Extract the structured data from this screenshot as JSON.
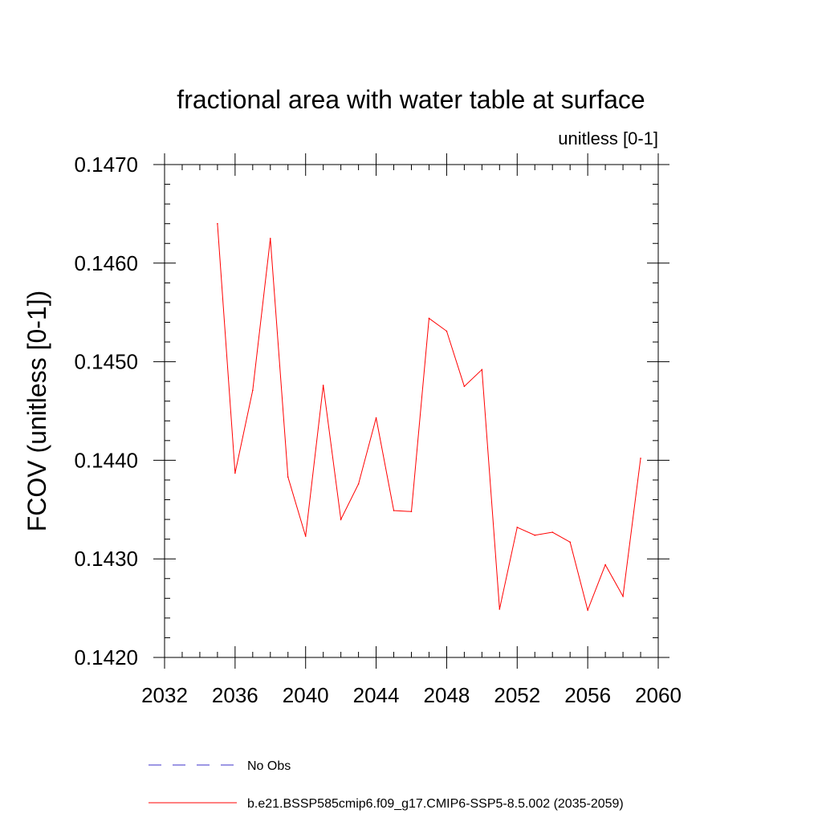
{
  "chart_data": {
    "type": "line",
    "title": "fractional area with water table at surface",
    "subtitle": "unitless [0-1]",
    "xlabel": "",
    "ylabel": "FCOV  (unitless [0-1])",
    "xlim": [
      2032,
      2060
    ],
    "ylim": [
      0.142,
      0.147
    ],
    "x_ticks": [
      2032,
      2036,
      2040,
      2044,
      2048,
      2052,
      2056,
      2060
    ],
    "y_ticks": [
      0.142,
      0.143,
      0.144,
      0.145,
      0.146,
      0.147
    ],
    "x_tick_labels": [
      "2032",
      "2036",
      "2040",
      "2044",
      "2048",
      "2052",
      "2056",
      "2060"
    ],
    "y_tick_labels": [
      "0.1420",
      "0.1430",
      "0.1440",
      "0.1450",
      "0.1460",
      "0.1470"
    ],
    "x_minor_step": 1,
    "y_minor_step": 0.0002,
    "grid": false,
    "legend_position": "bottom",
    "legend": [
      {
        "label": "No Obs",
        "color": "#3b2fc9",
        "dash": "dashed"
      },
      {
        "label": "b.e21.BSSP585cmip6.f09_g17.CMIP6-SSP5-8.5.002 (2035-2059)",
        "color": "#ff0000",
        "dash": "solid"
      }
    ],
    "series": [
      {
        "name": "b.e21.BSSP585cmip6.f09_g17.CMIP6-SSP5-8.5.002 (2035-2059)",
        "color": "#ff0000",
        "x": [
          2035,
          2036,
          2037,
          2038,
          2039,
          2040,
          2041,
          2042,
          2043,
          2044,
          2045,
          2046,
          2047,
          2048,
          2049,
          2050,
          2051,
          2052,
          2053,
          2054,
          2055,
          2056,
          2057,
          2058,
          2059
        ],
        "y": [
          0.1464,
          0.14387,
          0.14471,
          0.14625,
          0.14383,
          0.14323,
          0.14476,
          0.1434,
          0.14376,
          0.14443,
          0.14349,
          0.14348,
          0.14544,
          0.14531,
          0.14475,
          0.14492,
          0.14249,
          0.14332,
          0.14324,
          0.14327,
          0.14317,
          0.14248,
          0.14294,
          0.14262,
          0.14402
        ]
      }
    ]
  }
}
